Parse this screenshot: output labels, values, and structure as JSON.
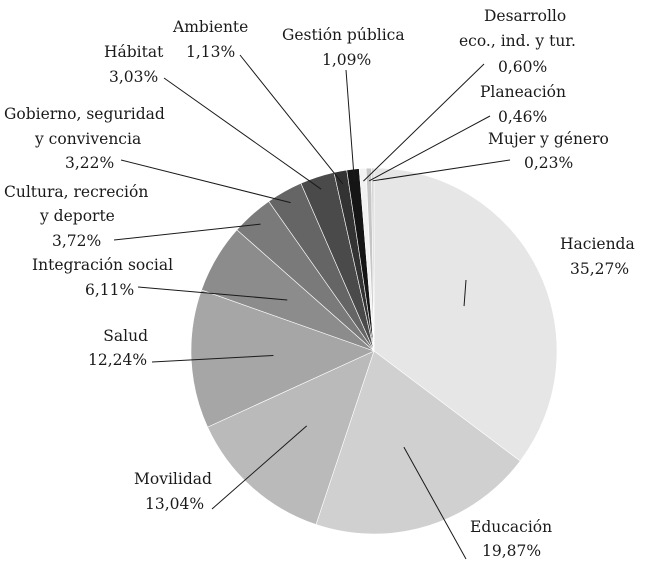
{
  "chart_data": {
    "type": "pie",
    "title": "",
    "start_angle_deg": 0,
    "direction": "clockwise",
    "slices": [
      {
        "label": "Hacienda",
        "value": 35.27,
        "value_label": "35,27%",
        "color": "#e6e6e6"
      },
      {
        "label": "Educación",
        "value": 19.87,
        "value_label": "19,87%",
        "color": "#d0d0d0"
      },
      {
        "label": "Movilidad",
        "value": 13.04,
        "value_label": "13,04%",
        "color": "#bababa"
      },
      {
        "label": "Salud",
        "value": 12.24,
        "value_label": "12,24%",
        "color": "#a6a6a6"
      },
      {
        "label": "Integración social",
        "value": 6.11,
        "value_label": "6,11%",
        "color": "#8c8c8c"
      },
      {
        "label": "Cultura, recreción y deporte",
        "value": 3.72,
        "value_label": "3,72%",
        "color": "#7a7a7a"
      },
      {
        "label": "Gobierno, seguridad y convivencia",
        "value": 3.22,
        "value_label": "3,22%",
        "color": "#656565"
      },
      {
        "label": "Hábitat",
        "value": 3.03,
        "value_label": "3,03%",
        "color": "#4a4a4a"
      },
      {
        "label": "Ambiente",
        "value": 1.13,
        "value_label": "1,13%",
        "color": "#333333"
      },
      {
        "label": "Gestión pública",
        "value": 1.09,
        "value_label": "1,09%",
        "color": "#151515"
      },
      {
        "label": "Desarrollo eco., ind. y tur.",
        "value": 0.6,
        "value_label": "0,60%",
        "color": "#f2f2f2"
      },
      {
        "label": "Planeación",
        "value": 0.46,
        "value_label": "0,46%",
        "color": "#c6c6c6"
      },
      {
        "label": "Mujer y género",
        "value": 0.23,
        "value_label": "0,23%",
        "color": "#d8d8d8"
      }
    ]
  }
}
